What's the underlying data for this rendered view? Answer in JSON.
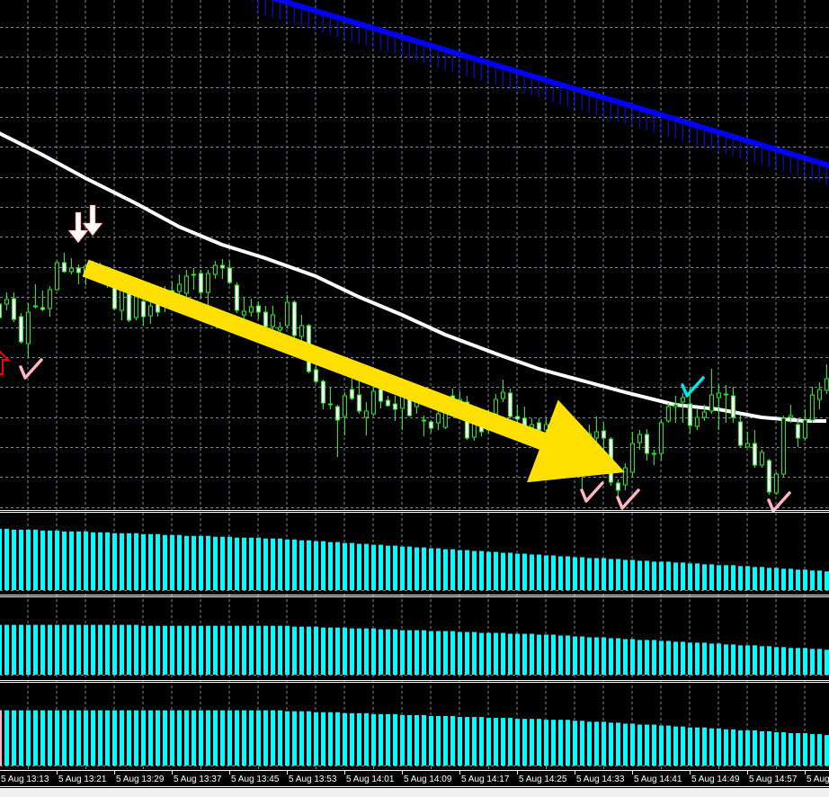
{
  "window": {
    "background": "#000000",
    "grid_color": "#778899",
    "frame_color": "#f0f0f0"
  },
  "colors": {
    "wick": "#00ff00",
    "bull_body_fill": "#000000",
    "bull_body_stroke": "#00ff00",
    "bear_body_fill": "#ffffff",
    "ma_white": "#ffffff",
    "ma_blue": "#0000ff",
    "histogram": "#00ffff",
    "histogram_first_bar": "#ffb6c1",
    "trend_arrow": "#ffe000",
    "check_pink": "#ffb6c1",
    "check_cyan": "#00e5ee",
    "arrow_down": "#ffffff",
    "arrow_up": "#ff0000"
  },
  "xaxis": {
    "labels": [
      "5 Aug 13:13",
      "5 Aug 13:21",
      "5 Aug 13:29",
      "5 Aug 13:37",
      "5 Aug 13:45",
      "5 Aug 13:53",
      "5 Aug 14:01",
      "5 Aug 14:09",
      "5 Aug 14:17",
      "5 Aug 14:25",
      "5 Aug 14:33",
      "5 Aug 14:41",
      "5 Aug 14:49",
      "5 Aug 14:57",
      "5 Aug"
    ],
    "bar_interval": "1 minute",
    "bars_per_label": 8
  },
  "chart_data": [
    {
      "type": "candlestick",
      "ylim": [
        34,
        600
      ],
      "grid": true,
      "ohlc": [
        [
          262,
          270,
          240,
          247
        ],
        [
          262,
          275,
          255,
          267
        ],
        [
          268,
          275,
          242,
          245
        ],
        [
          248,
          252,
          218,
          220
        ],
        [
          218,
          263,
          203,
          253
        ],
        [
          259,
          284,
          257,
          260
        ],
        [
          258,
          277,
          254,
          256
        ],
        [
          257,
          282,
          248,
          278
        ],
        [
          278,
          310,
          277,
          308
        ],
        [
          308,
          319,
          297,
          298
        ],
        [
          298,
          313,
          295,
          302
        ],
        [
          302,
          306,
          284,
          297
        ],
        [
          298,
          307,
          283,
          304
        ],
        [
          301,
          310,
          290,
          304
        ],
        [
          303,
          308,
          285,
          300
        ],
        [
          300,
          304,
          280,
          285
        ],
        [
          282,
          287,
          255,
          257
        ],
        [
          255,
          282,
          244,
          277
        ],
        [
          273,
          280,
          242,
          244
        ],
        [
          247,
          275,
          244,
          270
        ],
        [
          265,
          270,
          238,
          248
        ],
        [
          249,
          270,
          240,
          260
        ],
        [
          263,
          270,
          248,
          253
        ],
        [
          260,
          282,
          253,
          274
        ],
        [
          277,
          287,
          270,
          274
        ],
        [
          276,
          295,
          270,
          284
        ],
        [
          274,
          300,
          270,
          293
        ],
        [
          294,
          302,
          278,
          295
        ],
        [
          296,
          300,
          268,
          275
        ],
        [
          275,
          300,
          260,
          296
        ],
        [
          295,
          310,
          290,
          305
        ],
        [
          305,
          312,
          290,
          302
        ],
        [
          302,
          310,
          284,
          286
        ],
        [
          283,
          286,
          252,
          255
        ],
        [
          250,
          270,
          240,
          254
        ],
        [
          253,
          268,
          248,
          259
        ],
        [
          260,
          265,
          245,
          253
        ],
        [
          253,
          260,
          230,
          237
        ],
        [
          237,
          260,
          228,
          250
        ],
        [
          233,
          242,
          228,
          236
        ],
        [
          238,
          272,
          236,
          264
        ],
        [
          264,
          266,
          224,
          227
        ],
        [
          226,
          250,
          220,
          238
        ],
        [
          238,
          240,
          185,
          187
        ],
        [
          189,
          195,
          174,
          176
        ],
        [
          176,
          178,
          145,
          152
        ],
        [
          150,
          169,
          145,
          151
        ],
        [
          148,
          150,
          92,
          133
        ],
        [
          137,
          164,
          116,
          160
        ],
        [
          167,
          180,
          155,
          157
        ],
        [
          161,
          180,
          140,
          143
        ],
        [
          136,
          153,
          116,
          143
        ],
        [
          140,
          170,
          138,
          165
        ],
        [
          167,
          175,
          146,
          154
        ],
        [
          155,
          160,
          148,
          149
        ],
        [
          151,
          160,
          132,
          145
        ],
        [
          146,
          175,
          122,
          160
        ],
        [
          160,
          165,
          137,
          138
        ],
        [
          148,
          160,
          140,
          154
        ],
        [
          132,
          138,
          115,
          133
        ],
        [
          131,
          133,
          119,
          124
        ],
        [
          130,
          150,
          122,
          140
        ],
        [
          125,
          155,
          123,
          147
        ],
        [
          160,
          168,
          142,
          150
        ],
        [
          145,
          165,
          135,
          156
        ],
        [
          153,
          160,
          111,
          113
        ],
        [
          114,
          140,
          110,
          130
        ],
        [
          130,
          135,
          115,
          120
        ],
        [
          122,
          145,
          118,
          135
        ],
        [
          140,
          162,
          130,
          156
        ],
        [
          157,
          178,
          153,
          164
        ],
        [
          163,
          168,
          135,
          137
        ],
        [
          137,
          150,
          130,
          134
        ],
        [
          135,
          148,
          120,
          125
        ],
        [
          125,
          135,
          122,
          128
        ],
        [
          130,
          135,
          118,
          122
        ],
        [
          122,
          135,
          115,
          128
        ],
        [
          126,
          130,
          110,
          116
        ],
        [
          116,
          128,
          110,
          122
        ],
        [
          124,
          130,
          108,
          114
        ],
        [
          118,
          122,
          100,
          108
        ],
        [
          106,
          127,
          53,
          116
        ],
        [
          110,
          128,
          95,
          118
        ],
        [
          113,
          137,
          100,
          120
        ],
        [
          121,
          130,
          95,
          113
        ],
        [
          112,
          114,
          60,
          64
        ],
        [
          63,
          67,
          48,
          55
        ],
        [
          61,
          85,
          55,
          80
        ],
        [
          75,
          120,
          70,
          107
        ],
        [
          108,
          122,
          100,
          117
        ],
        [
          117,
          123,
          88,
          96
        ],
        [
          95,
          100,
          83,
          96
        ],
        [
          96,
          134,
          88,
          130
        ],
        [
          132,
          152,
          130,
          148
        ],
        [
          148,
          160,
          130,
          150
        ],
        [
          153,
          163,
          130,
          158
        ],
        [
          151,
          170,
          118,
          127
        ],
        [
          126,
          145,
          122,
          136
        ],
        [
          136,
          150,
          132,
          142
        ],
        [
          143,
          190,
          140,
          161
        ],
        [
          158,
          173,
          122,
          163
        ],
        [
          161,
          172,
          130,
          162
        ],
        [
          160,
          170,
          130,
          136
        ],
        [
          131,
          138,
          103,
          105
        ],
        [
          103,
          120,
          103,
          107
        ],
        [
          107,
          122,
          80,
          83
        ],
        [
          83,
          100,
          80,
          97
        ],
        [
          88,
          90,
          50,
          53
        ],
        [
          52,
          75,
          50,
          73
        ],
        [
          73,
          138,
          70,
          135
        ],
        [
          136,
          150,
          130,
          138
        ],
        [
          128,
          135,
          103,
          113
        ],
        [
          113,
          145,
          110,
          133
        ],
        [
          133,
          170,
          130,
          161
        ],
        [
          156,
          175,
          145,
          167
        ],
        [
          166,
          195,
          162,
          179
        ]
      ],
      "ma_white": [
        [
          0,
          452
        ],
        [
          6,
          428
        ],
        [
          12,
          402
        ],
        [
          19,
          374
        ],
        [
          25,
          348
        ],
        [
          31,
          328
        ],
        [
          37,
          313
        ],
        [
          44,
          293
        ],
        [
          50,
          270
        ],
        [
          56,
          250
        ],
        [
          62,
          228
        ],
        [
          69,
          207
        ],
        [
          75,
          190
        ],
        [
          81,
          177
        ],
        [
          87,
          164
        ],
        [
          94,
          150
        ],
        [
          100,
          145
        ],
        [
          106,
          136
        ],
        [
          112,
          132
        ],
        [
          115,
          132
        ]
      ],
      "ma_blue": [
        [
          39,
          600
        ],
        [
          115,
          417
        ]
      ],
      "markers": [
        {
          "type": "arrow-up",
          "bar": 0,
          "value": 210
        },
        {
          "type": "arrow-down",
          "bar": 11,
          "value": 330
        },
        {
          "type": "arrow-down",
          "bar": 13,
          "value": 338
        },
        {
          "type": "check-pink",
          "bar": 4,
          "value": 200
        },
        {
          "type": "check-pink",
          "bar": 82,
          "value": 63
        },
        {
          "type": "check-pink",
          "bar": 87,
          "value": 55
        },
        {
          "type": "check-pink",
          "bar": 108,
          "value": 52
        },
        {
          "type": "check-cyan",
          "bar": 96,
          "value": 180
        }
      ],
      "trend_arrow": {
        "from": [
          12,
          302
        ],
        "to": [
          87,
          75
        ]
      }
    },
    {
      "type": "bar",
      "ylim": [
        0,
        86
      ],
      "values": [
        69,
        69,
        68,
        68,
        68,
        68,
        67,
        67,
        67,
        66,
        66,
        66,
        66,
        65,
        65,
        65,
        64,
        64,
        64,
        64,
        63,
        63,
        63,
        62,
        62,
        62,
        61,
        61,
        61,
        61,
        60,
        60,
        60,
        59,
        59,
        59,
        59,
        58,
        58,
        58,
        57,
        57,
        56,
        56,
        55,
        55,
        54,
        54,
        53,
        53,
        52,
        52,
        51,
        51,
        50,
        50,
        49,
        49,
        48,
        48,
        47,
        47,
        46,
        46,
        45,
        45,
        44,
        44,
        43,
        43,
        42,
        42,
        41,
        41,
        40,
        40,
        39,
        39,
        38,
        38,
        37,
        37,
        36,
        36,
        36,
        35,
        35,
        34,
        34,
        33,
        33,
        32,
        32,
        32,
        31,
        31,
        30,
        30,
        29,
        29,
        28,
        28,
        28,
        27,
        27,
        26,
        26,
        25,
        25,
        24,
        24,
        23,
        23,
        22,
        22,
        21
      ]
    },
    {
      "type": "bar",
      "ylim": [
        0,
        86
      ],
      "values": [
        56,
        56,
        56,
        56,
        56,
        56,
        56,
        56,
        56,
        56,
        56,
        56,
        56,
        56,
        56,
        56,
        56,
        56,
        56,
        56,
        55,
        55,
        55,
        55,
        55,
        55,
        55,
        55,
        55,
        55,
        55,
        55,
        55,
        55,
        55,
        55,
        55,
        55,
        55,
        55,
        55,
        54,
        54,
        54,
        54,
        53,
        53,
        53,
        53,
        52,
        52,
        52,
        52,
        51,
        51,
        51,
        50,
        50,
        50,
        50,
        49,
        49,
        49,
        49,
        48,
        48,
        48,
        47,
        47,
        47,
        47,
        46,
        46,
        46,
        46,
        45,
        45,
        45,
        44,
        44,
        43,
        43,
        42,
        42,
        42,
        41,
        41,
        40,
        40,
        39,
        39,
        39,
        38,
        38,
        37,
        37,
        36,
        36,
        36,
        35,
        35,
        34,
        34,
        33,
        33,
        33,
        32,
        32,
        31,
        31,
        30,
        30,
        30,
        29,
        29,
        28
      ]
    },
    {
      "type": "bar",
      "ylim": [
        0,
        86
      ],
      "values": [
        58,
        58,
        58,
        58,
        58,
        58,
        58,
        58,
        58,
        58,
        58,
        58,
        58,
        58,
        58,
        58,
        58,
        58,
        58,
        58,
        58,
        58,
        58,
        58,
        58,
        58,
        58,
        58,
        58,
        58,
        58,
        58,
        58,
        58,
        58,
        58,
        58,
        58,
        58,
        58,
        57,
        57,
        57,
        57,
        56,
        56,
        56,
        56,
        55,
        55,
        55,
        55,
        54,
        54,
        54,
        54,
        53,
        53,
        53,
        53,
        52,
        52,
        52,
        52,
        51,
        51,
        51,
        51,
        50,
        50,
        50,
        50,
        49,
        49,
        49,
        49,
        48,
        48,
        48,
        48,
        47,
        47,
        46,
        46,
        46,
        45,
        45,
        44,
        44,
        43,
        43,
        43,
        42,
        42,
        41,
        41,
        40,
        40,
        40,
        39,
        39,
        38,
        38,
        37,
        37,
        37,
        36,
        36,
        35,
        35,
        34,
        34,
        34,
        33,
        33,
        32
      ]
    }
  ]
}
